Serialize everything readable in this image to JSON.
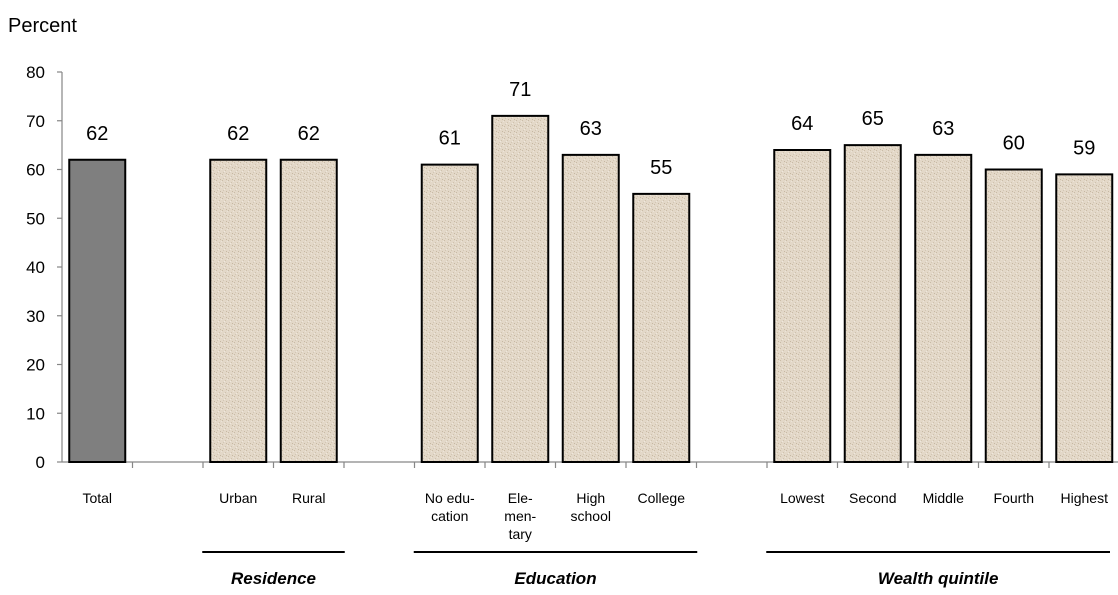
{
  "chart_data": {
    "type": "bar",
    "ylabel": "Percent",
    "ylim": [
      0,
      80
    ],
    "yticks": [
      0,
      10,
      20,
      30,
      40,
      50,
      60,
      70,
      80
    ],
    "grid": false,
    "colors": {
      "highlight": "#7f7f7f",
      "default": "#e3d8c8",
      "stroke": "#000000"
    },
    "bars": [
      {
        "label": [
          "Total"
        ],
        "value": 62,
        "value_label": "62",
        "highlight": true
      },
      {
        "label": [
          "Urban"
        ],
        "value": 62,
        "value_label": "62"
      },
      {
        "label": [
          "Rural"
        ],
        "value": 62,
        "value_label": "62"
      },
      {
        "label": [
          "No edu-",
          "cation"
        ],
        "value": 61,
        "value_label": "61"
      },
      {
        "label": [
          "Ele-",
          "men-",
          "tary"
        ],
        "value": 71,
        "value_label": "71"
      },
      {
        "label": [
          "High",
          "school"
        ],
        "value": 63,
        "value_label": "63"
      },
      {
        "label": [
          "College"
        ],
        "value": 55,
        "value_label": "55"
      },
      {
        "label": [
          "Lowest"
        ],
        "value": 64,
        "value_label": "64"
      },
      {
        "label": [
          "Second"
        ],
        "value": 65,
        "value_label": "65"
      },
      {
        "label": [
          "Middle"
        ],
        "value": 63,
        "value_label": "63"
      },
      {
        "label": [
          "Fourth"
        ],
        "value": 60,
        "value_label": "60"
      },
      {
        "label": [
          "Highest"
        ],
        "value": 59,
        "value_label": "59"
      }
    ],
    "groups": [
      {
        "name": "Residence",
        "first_bar": 1,
        "last_bar": 2
      },
      {
        "name": "Education",
        "first_bar": 3,
        "last_bar": 6
      },
      {
        "name": "Wealth quintile",
        "first_bar": 7,
        "last_bar": 11
      }
    ]
  }
}
